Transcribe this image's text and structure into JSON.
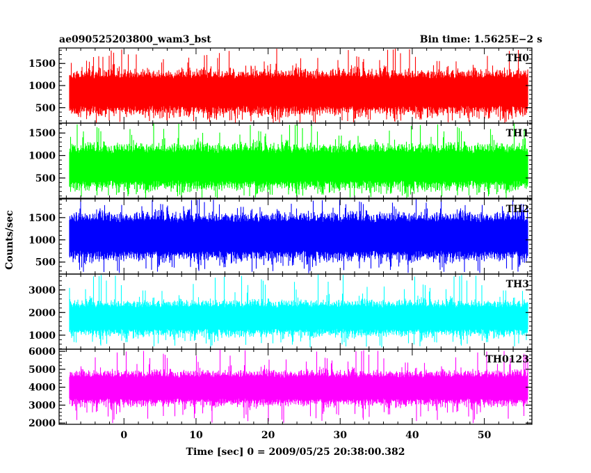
{
  "header": {
    "left_title": "ae090525203800_wam3_bst",
    "right_title": "Bin time: 1.5625E−2 s"
  },
  "axes": {
    "xlabel": "Time [sec] 0 = 2009/05/25 20:38:00.382",
    "ylabel": "Counts/sec"
  },
  "chart_data": {
    "type": "line",
    "title": "ae090525203800_wam3_bst",
    "subtitle": "Bin time: 1.5625E−2 s",
    "xlabel": "Time [sec] 0 = 2009/05/25 20:38:00.382",
    "ylabel": "Counts/sec",
    "xlim": [
      -9,
      56.6
    ],
    "x_ticks": [
      0,
      10,
      20,
      30,
      40,
      50
    ],
    "x_tick_labels": [
      "0",
      "10",
      "20",
      "30",
      "40",
      "50"
    ],
    "data_x_range": [
      -7.6,
      56.0
    ],
    "bin_time": 0.015625,
    "grid": false,
    "panels": [
      {
        "name": "TH0",
        "color": "#ff0000",
        "ylim": [
          150,
          1850
        ],
        "y_ticks": [
          500,
          1000,
          1500
        ],
        "y_tick_labels": [
          "500",
          "1000",
          "1500"
        ],
        "typical_range": [
          300,
          1400
        ],
        "data_min": 150,
        "data_max": 1850
      },
      {
        "name": "TH1",
        "color": "#00ff00",
        "ylim": [
          50,
          1720
        ],
        "y_ticks": [
          500,
          1000,
          1500
        ],
        "y_tick_labels": [
          "500",
          "1000",
          "1500"
        ],
        "typical_range": [
          200,
          1300
        ],
        "data_min": 50,
        "data_max": 1720
      },
      {
        "name": "TH2",
        "color": "#0000ff",
        "ylim": [
          230,
          1920
        ],
        "y_ticks": [
          500,
          1000,
          1500
        ],
        "y_tick_labels": [
          "500",
          "1000",
          "1500"
        ],
        "typical_range": [
          500,
          1650
        ],
        "data_min": 250,
        "data_max": 1920
      },
      {
        "name": "TH3",
        "color": "#00ffff",
        "ylim": [
          380,
          3700
        ],
        "y_ticks": [
          1000,
          2000,
          3000
        ],
        "y_tick_labels": [
          "1000",
          "2000",
          "3000"
        ],
        "typical_range": [
          900,
          2600
        ],
        "data_min": 450,
        "data_max": 3700
      },
      {
        "name": "TH0123",
        "color": "#ff00ff",
        "ylim": [
          1930,
          6120
        ],
        "y_ticks": [
          2000,
          3000,
          4000,
          5000,
          6000
        ],
        "y_tick_labels": [
          "2000",
          "3000",
          "4000",
          "5000",
          "6000"
        ],
        "typical_range": [
          2900,
          5000
        ],
        "data_min": 2000,
        "data_max": 6100
      }
    ]
  }
}
